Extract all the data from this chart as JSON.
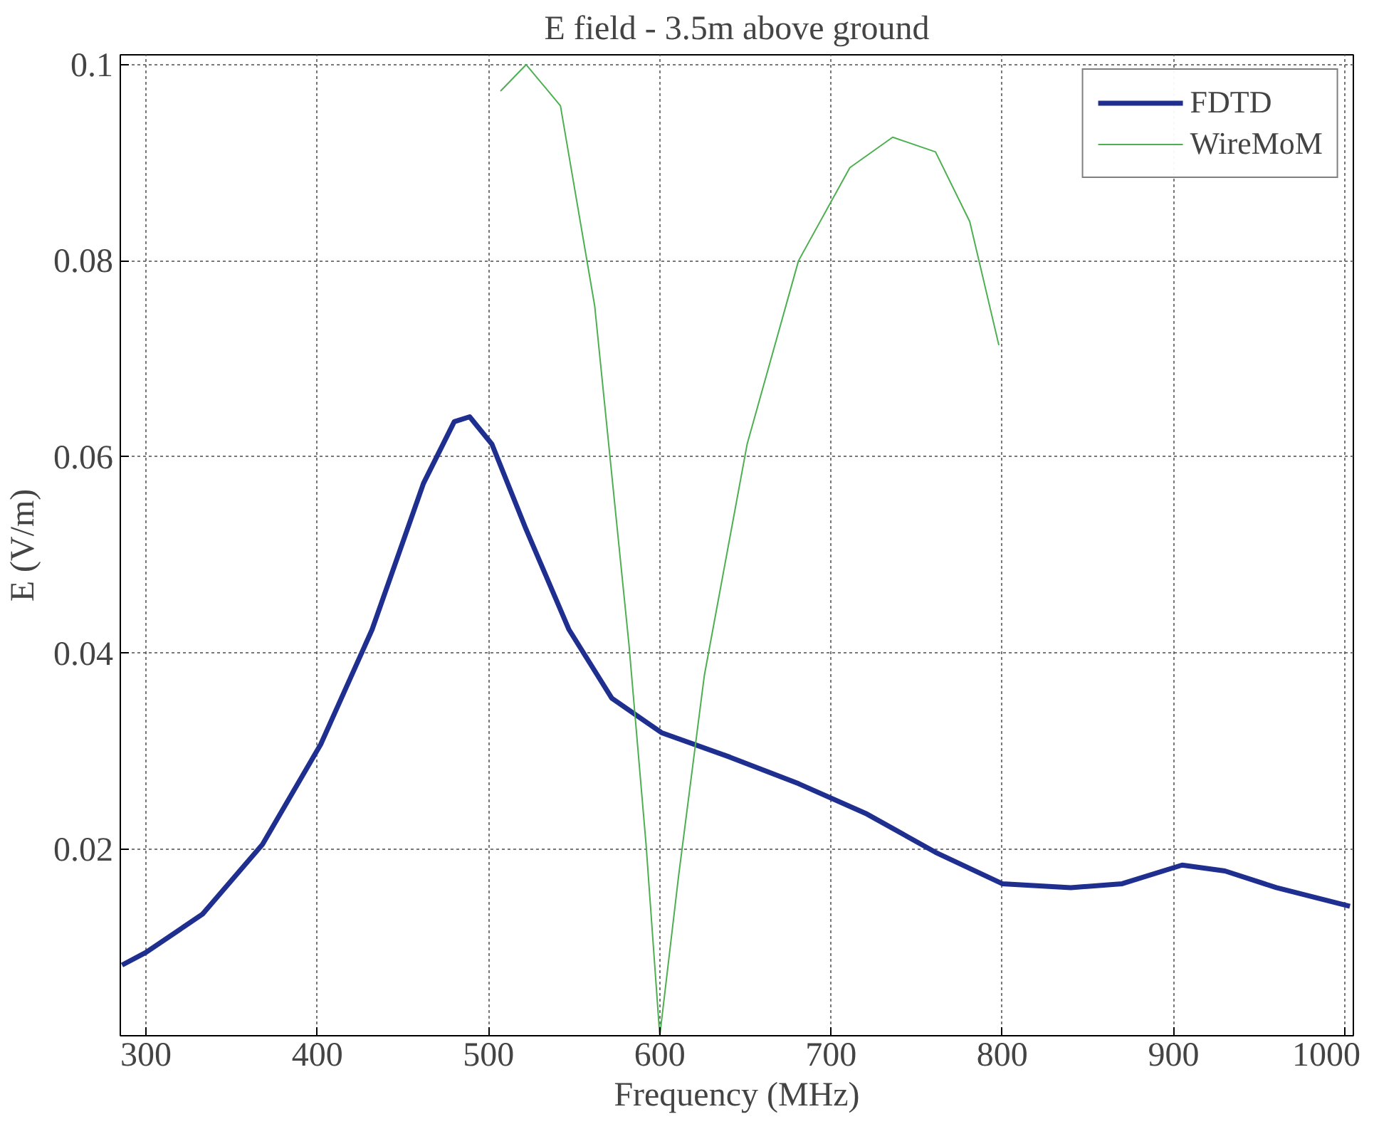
{
  "chart_data": {
    "type": "line",
    "title": "E field - 3.5m above ground",
    "xlabel": "Frequency (MHz)",
    "ylabel": "E (V/m)",
    "xlim": [
      285,
      1005
    ],
    "ylim": [
      0.001,
      0.101
    ],
    "xticks": [
      300,
      400,
      500,
      600,
      700,
      800,
      900,
      1000
    ],
    "yticks": [
      0.02,
      0.04,
      0.06,
      0.08,
      0.1
    ],
    "grid": true,
    "legend": "top right",
    "line_style": "solid",
    "series": [
      {
        "name": "FDTD",
        "color": "#1f2f8f",
        "x": [
          286,
          300,
          333,
          368,
          402,
          432,
          462,
          480,
          489,
          502,
          522,
          547,
          572,
          601,
          641,
          681,
          721,
          761,
          800,
          840,
          870,
          905,
          930,
          960,
          1003
        ],
        "values": [
          0.0082,
          0.0095,
          0.0134,
          0.0205,
          0.0307,
          0.0424,
          0.0573,
          0.0636,
          0.0641,
          0.0613,
          0.0526,
          0.0424,
          0.0354,
          0.0319,
          0.0294,
          0.0267,
          0.0236,
          0.0197,
          0.0165,
          0.0161,
          0.0165,
          0.0184,
          0.0178,
          0.0161,
          0.0142
        ]
      },
      {
        "name": "WireMoM",
        "color": "#4caf50",
        "x": [
          507,
          522,
          542,
          562,
          582,
          592,
          600,
          611,
          626,
          651,
          681,
          711,
          736,
          761,
          781,
          798
        ],
        "values": [
          0.0973,
          0.1,
          0.0958,
          0.0754,
          0.0409,
          0.0205,
          0.001,
          0.0173,
          0.0377,
          0.0613,
          0.08,
          0.0895,
          0.0926,
          0.0911,
          0.084,
          0.0714
        ]
      }
    ]
  }
}
